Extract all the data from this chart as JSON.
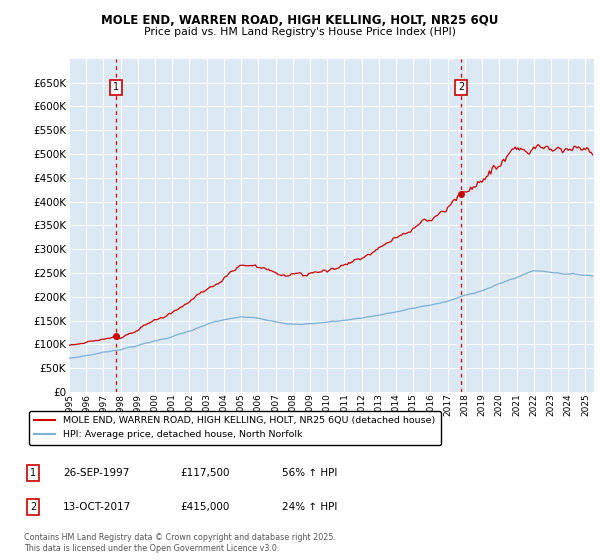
{
  "title_line1": "MOLE END, WARREN ROAD, HIGH KELLING, HOLT, NR25 6QU",
  "title_line2": "Price paid vs. HM Land Registry's House Price Index (HPI)",
  "red_label": "MOLE END, WARREN ROAD, HIGH KELLING, HOLT, NR25 6QU (detached house)",
  "blue_label": "HPI: Average price, detached house, North Norfolk",
  "annotation1_date": "26-SEP-1997",
  "annotation1_price": "£117,500",
  "annotation1_hpi": "56% ↑ HPI",
  "annotation2_date": "13-OCT-2017",
  "annotation2_price": "£415,000",
  "annotation2_hpi": "24% ↑ HPI",
  "copyright_text": "Contains HM Land Registry data © Crown copyright and database right 2025.\nThis data is licensed under the Open Government Licence v3.0.",
  "plot_bg_color": "#dce9f5",
  "red_color": "#cc0000",
  "blue_color": "#7bafd4",
  "vline_color": "#cc0000",
  "ylim": [
    0,
    700000
  ],
  "yticks": [
    0,
    50000,
    100000,
    150000,
    200000,
    250000,
    300000,
    350000,
    400000,
    450000,
    500000,
    550000,
    600000,
    650000
  ],
  "point1_x": 1997.74,
  "point1_y": 117500,
  "point2_x": 2017.78,
  "point2_y": 415000,
  "vline1_x": 1997.74,
  "vline2_x": 2017.78,
  "xmin": 1995.0,
  "xmax": 2025.5
}
